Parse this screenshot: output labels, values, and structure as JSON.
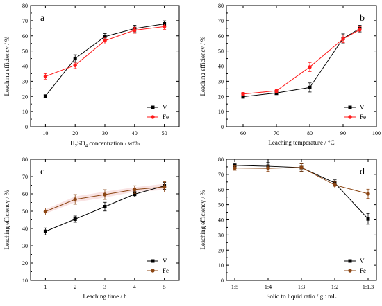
{
  "colors": {
    "V": "#000000",
    "Fe": "#ff1a1a",
    "Fe_brown": "#8b4513",
    "band_fe": "#f4c7c7"
  },
  "chart_data": [
    {
      "id": "a",
      "type": "line",
      "panel_letter": "a",
      "x": [
        10,
        20,
        30,
        40,
        50
      ],
      "xticks": [
        "10",
        "20",
        "30",
        "40",
        "50"
      ],
      "xlim": [
        5,
        55
      ],
      "ylim": [
        0,
        80
      ],
      "yticks": [
        "0",
        "10",
        "20",
        "30",
        "40",
        "50",
        "60",
        "70",
        "80"
      ],
      "xlabel_main": "H",
      "xlabel_sub1": "2",
      "xlabel_mid": "SO",
      "xlabel_sub2": "4",
      "xlabel_rest": " concentration / wt%",
      "ylabel": "Leaching efficiency / %",
      "legend_position": "bottom-right",
      "series": [
        {
          "name": "V",
          "values": [
            20.2,
            45.0,
            59.5,
            64.8,
            67.9
          ],
          "errors": [
            0.8,
            2.5,
            2.0,
            2.2,
            2.0
          ],
          "color": "#000000",
          "marker": "square"
        },
        {
          "name": "Fe",
          "values": [
            33.2,
            40.6,
            56.8,
            63.7,
            66.1
          ],
          "errors": [
            1.8,
            2.2,
            2.2,
            2.0,
            1.8
          ],
          "color": "#ff1a1a",
          "marker": "circle"
        }
      ]
    },
    {
      "id": "b",
      "type": "line",
      "panel_letter": "b",
      "x": [
        60,
        70,
        80,
        90,
        95
      ],
      "xticks": [
        "60",
        "70",
        "80",
        "90",
        "100"
      ],
      "xtick_values": [
        60,
        70,
        80,
        90,
        100
      ],
      "xlim": [
        55,
        100
      ],
      "ylim": [
        0,
        80
      ],
      "yticks": [
        "0",
        "10",
        "20",
        "30",
        "40",
        "50",
        "60",
        "70",
        "80"
      ],
      "xlabel": "Leaching temperature / °C",
      "ylabel": "Leaching efficiency / %",
      "legend_position": "bottom-right",
      "series": [
        {
          "name": "V",
          "values": [
            19.8,
            22.3,
            25.9,
            58.3,
            64.8
          ],
          "errors": [
            1.0,
            1.2,
            3.0,
            3.0,
            2.2
          ],
          "color": "#000000",
          "marker": "square"
        },
        {
          "name": "Fe",
          "values": [
            21.6,
            23.7,
            39.4,
            58.0,
            64.0
          ],
          "errors": [
            1.0,
            1.2,
            3.0,
            2.5,
            2.0
          ],
          "color": "#ff1a1a",
          "marker": "circle"
        }
      ]
    },
    {
      "id": "c",
      "type": "line",
      "panel_letter": "c",
      "x": [
        1,
        2,
        3,
        4,
        5
      ],
      "xticks": [
        "1",
        "2",
        "3",
        "4",
        "5"
      ],
      "xlim": [
        0.5,
        5.5
      ],
      "ylim": [
        10,
        80
      ],
      "yticks": [
        "10",
        "20",
        "30",
        "40",
        "50",
        "60",
        "70",
        "80"
      ],
      "xlabel": "Leaching time / h",
      "ylabel": "Leaching efficiency / %",
      "legend_position": "bottom-right",
      "series": [
        {
          "name": "V",
          "values": [
            38.3,
            45.4,
            52.6,
            59.8,
            64.6
          ],
          "errors": [
            2.0,
            1.8,
            2.5,
            1.5,
            2.0
          ],
          "color": "#000000",
          "marker": "square"
        },
        {
          "name": "Fe",
          "values": [
            49.8,
            56.8,
            59.6,
            62.5,
            64.0
          ],
          "errors": [
            2.0,
            2.8,
            2.8,
            2.2,
            3.0
          ],
          "color": "#8b4513",
          "marker": "circle"
        }
      ]
    },
    {
      "id": "d",
      "type": "line",
      "panel_letter": "d",
      "x": [
        0,
        1,
        2,
        3,
        4
      ],
      "xticks": [
        "1:5",
        "1:4",
        "1:3",
        "1:2",
        "1:1.3"
      ],
      "xlim": [
        -0.25,
        4.25
      ],
      "ylim": [
        0,
        80
      ],
      "yticks": [
        "0",
        "10",
        "20",
        "30",
        "40",
        "50",
        "60",
        "70",
        "80"
      ],
      "xlabel": "Solid to liquid ratio / g : mL",
      "ylabel": "Leaching efficiency / %",
      "legend_position": "bottom-right",
      "series": [
        {
          "name": "V",
          "values": [
            76.0,
            75.4,
            74.5,
            64.4,
            40.6
          ],
          "errors": [
            1.5,
            2.5,
            2.5,
            2.0,
            3.5
          ],
          "color": "#000000",
          "marker": "square"
        },
        {
          "name": "Fe",
          "values": [
            74.2,
            74.0,
            74.6,
            63.0,
            57.2
          ],
          "errors": [
            1.5,
            2.0,
            2.5,
            2.0,
            3.0
          ],
          "color": "#8b4513",
          "marker": "circle"
        }
      ]
    }
  ]
}
